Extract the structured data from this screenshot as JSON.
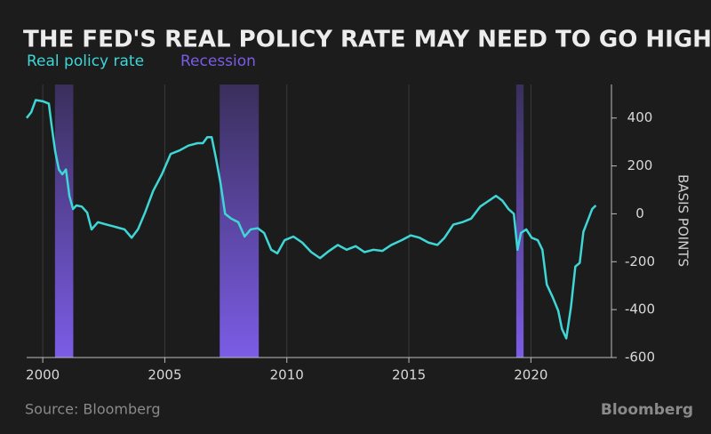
{
  "chart_data": {
    "type": "line",
    "title": "THE FED'S REAL POLICY RATE MAY NEED TO GO HIGHER",
    "y_label": "BASIS POINTS",
    "source": "Source: Bloomberg",
    "brand": "Bloomberg",
    "xlim": [
      1999.34,
      2023.3
    ],
    "xticks": [
      2000,
      2005,
      2010,
      2015,
      2020
    ],
    "ylim": [
      -600,
      540
    ],
    "yticks": [
      -600,
      -400,
      -200,
      0,
      200,
      400
    ],
    "grid": true,
    "series": [
      {
        "name": "Real policy rate",
        "color": "#3fd6d6",
        "x": [
          1999.34,
          1999.53,
          1999.71,
          2000.0,
          2000.25,
          2000.36,
          2000.51,
          2000.66,
          2000.8,
          2000.95,
          2001.09,
          2001.24,
          2001.38,
          2001.6,
          2001.82,
          2002.0,
          2002.26,
          2002.62,
          2002.99,
          2003.35,
          2003.64,
          2003.9,
          2004.19,
          2004.52,
          2004.88,
          2005.24,
          2005.61,
          2005.97,
          2006.34,
          2006.56,
          2006.74,
          2006.92,
          2007.1,
          2007.28,
          2007.47,
          2007.72,
          2008.01,
          2008.27,
          2008.52,
          2008.81,
          2009.07,
          2009.36,
          2009.61,
          2009.91,
          2010.27,
          2010.63,
          2011.0,
          2011.36,
          2011.73,
          2012.09,
          2012.45,
          2012.82,
          2013.18,
          2013.55,
          2013.91,
          2014.28,
          2014.71,
          2015.08,
          2015.44,
          2015.8,
          2016.17,
          2016.46,
          2016.82,
          2017.19,
          2017.55,
          2017.92,
          2018.28,
          2018.57,
          2018.83,
          2019.08,
          2019.3,
          2019.45,
          2019.59,
          2019.81,
          2020.03,
          2020.28,
          2020.47,
          2020.65,
          2020.9,
          2021.12,
          2021.27,
          2021.45,
          2021.64,
          2021.82,
          2022.0,
          2022.15,
          2022.36,
          2022.51,
          2022.66
        ],
        "values": [
          400,
          425,
          475,
          470,
          460,
          370,
          260,
          185,
          165,
          185,
          75,
          20,
          35,
          30,
          5,
          -65,
          -35,
          -45,
          -55,
          -65,
          -100,
          -65,
          5,
          95,
          165,
          250,
          265,
          285,
          295,
          295,
          320,
          320,
          230,
          130,
          0,
          -20,
          -35,
          -95,
          -65,
          -60,
          -80,
          -150,
          -165,
          -110,
          -95,
          -120,
          -160,
          -185,
          -155,
          -130,
          -150,
          -135,
          -160,
          -150,
          -155,
          -130,
          -110,
          -90,
          -100,
          -120,
          -130,
          -100,
          -45,
          -35,
          -20,
          30,
          55,
          75,
          55,
          20,
          0,
          -150,
          -80,
          -65,
          -100,
          -110,
          -150,
          -295,
          -350,
          -405,
          -480,
          -520,
          -390,
          -220,
          -205,
          -75,
          -20,
          20,
          35
        ]
      },
      {
        "name": "Recession",
        "color": "#7b5ce6",
        "type": "band",
        "start": [
          2000.5,
          2007.25,
          2019.4
        ],
        "end": [
          2001.25,
          2008.85,
          2019.7
        ]
      }
    ]
  }
}
